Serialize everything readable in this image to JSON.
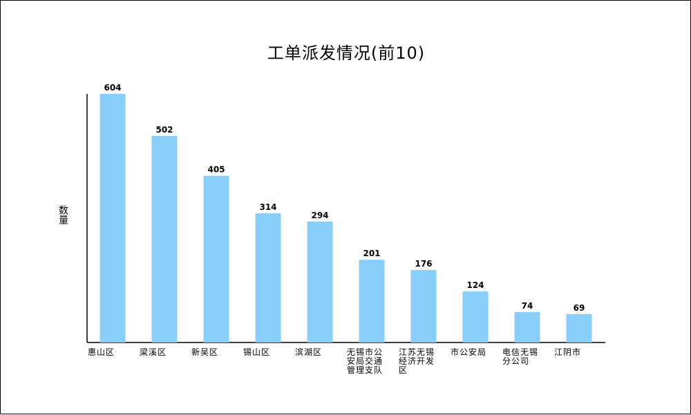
{
  "chart_data": {
    "type": "bar",
    "title": "工单派发情况(前10)",
    "ylabel": "数量",
    "xlabel": "",
    "categories": [
      "惠山区",
      "梁溪区",
      "新吴区",
      "锡山区",
      "滨湖区",
      "无锡市公安局交通管理支队",
      "江苏无锡经济开发区",
      "市公安局",
      "电信无锡分公司",
      "江阴市"
    ],
    "category_display_lines": [
      [
        "惠山区"
      ],
      [
        "梁溪区"
      ],
      [
        "新吴区"
      ],
      [
        "锡山区"
      ],
      [
        "滨湖区"
      ],
      [
        "无锡市公",
        "安局交通",
        "管理支队"
      ],
      [
        "江苏无锡",
        "经济开发",
        "区"
      ],
      [
        "市公安局"
      ],
      [
        "电信无锡",
        "分公司"
      ],
      [
        "江阴市"
      ]
    ],
    "values": [
      604,
      502,
      405,
      314,
      294,
      201,
      176,
      124,
      74,
      69
    ],
    "ylim": [
      0,
      604
    ],
    "bar_color": "#87CEFA",
    "axis_color": "#000000",
    "data_labels": true,
    "grid": false,
    "legend": "none"
  }
}
